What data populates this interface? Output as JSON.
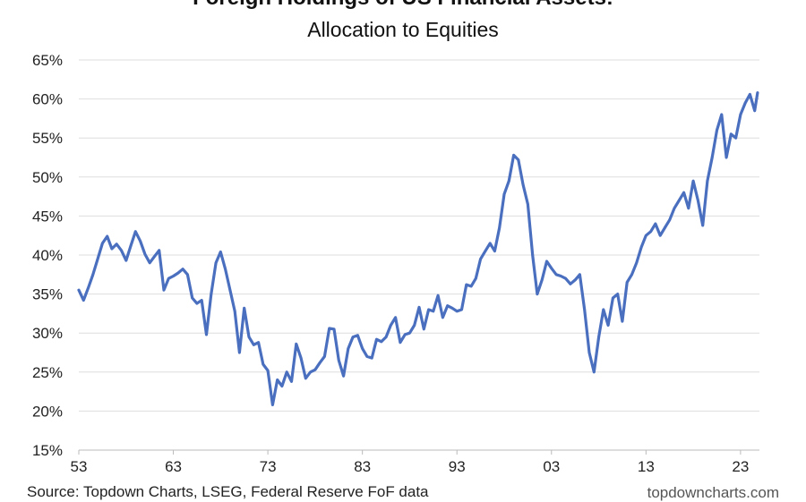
{
  "chart_data": {
    "type": "line",
    "title": "Foreign Holdings of US Financial Assets:",
    "subtitle": "Allocation to Equities",
    "ylim": [
      15,
      65
    ],
    "xlim": [
      1953,
      2025
    ],
    "y_ticks": [
      15,
      20,
      25,
      30,
      35,
      40,
      45,
      50,
      55,
      60,
      65
    ],
    "y_tick_labels": [
      "15%",
      "20%",
      "25%",
      "30%",
      "35%",
      "40%",
      "45%",
      "50%",
      "55%",
      "60%",
      "65%"
    ],
    "x_ticks": [
      1953,
      1963,
      1973,
      1983,
      1993,
      2003,
      2013,
      2023
    ],
    "x_tick_labels": [
      "53",
      "63",
      "73",
      "83",
      "93",
      "03",
      "13",
      "23"
    ],
    "grid": "horizontal",
    "line_color": "#4a6fbf",
    "series": [
      {
        "x": [
          1953,
          1953.5,
          1954,
          1954.5,
          1955,
          1955.5,
          1956,
          1956.5,
          1957,
          1957.5,
          1958,
          1958.5,
          1959,
          1959.5,
          1960,
          1960.5,
          1961,
          1961.5,
          1962,
          1962.5,
          1963,
          1963.5,
          1964,
          1964.5,
          1965,
          1965.5,
          1966,
          1966.5,
          1967,
          1967.5,
          1968,
          1968.5,
          1969,
          1969.5,
          1970,
          1970.5,
          1971,
          1971.5,
          1972,
          1972.5,
          1973,
          1973.5,
          1974,
          1974.5,
          1975,
          1975.5,
          1976,
          1976.5,
          1977,
          1977.5,
          1978,
          1978.5,
          1979,
          1979.5,
          1980,
          1980.5,
          1981,
          1981.5,
          1982,
          1982.5,
          1983,
          1983.5,
          1984,
          1984.5,
          1985,
          1985.5,
          1986,
          1986.5,
          1987,
          1987.5,
          1988,
          1988.5,
          1989,
          1989.5,
          1990,
          1990.5,
          1991,
          1991.5,
          1992,
          1992.5,
          1993,
          1993.5,
          1994,
          1994.5,
          1995,
          1995.5,
          1996,
          1996.5,
          1997,
          1997.5,
          1998,
          1998.5,
          1999,
          1999.5,
          2000,
          2000.5,
          2001,
          2001.5,
          2002,
          2002.5,
          2003,
          2003.5,
          2004,
          2004.5,
          2005,
          2005.5,
          2006,
          2006.5,
          2007,
          2007.5,
          2008,
          2008.5,
          2009,
          2009.5,
          2010,
          2010.5,
          2011,
          2011.5,
          2012,
          2012.5,
          2013,
          2013.5,
          2014,
          2014.5,
          2015,
          2015.5,
          2016,
          2016.5,
          2017,
          2017.5,
          2018,
          2018.5,
          2019,
          2019.5,
          2020,
          2020.5,
          2021,
          2021.5,
          2022,
          2022.5,
          2023,
          2023.5,
          2024,
          2024.5,
          2024.8
        ],
        "values": [
          35.5,
          34.2,
          35.8,
          37.5,
          39.5,
          41.5,
          42.4,
          40.8,
          41.4,
          40.6,
          39.3,
          41.2,
          43.0,
          41.8,
          40.1,
          39.0,
          39.8,
          40.6,
          35.5,
          37.0,
          37.3,
          37.7,
          38.2,
          37.5,
          34.5,
          33.8,
          34.2,
          29.8,
          35.0,
          39.0,
          40.4,
          38.2,
          35.5,
          32.8,
          27.5,
          33.2,
          29.5,
          28.5,
          28.8,
          26.0,
          25.2,
          20.8,
          24.0,
          23.2,
          25.0,
          23.8,
          28.6,
          26.8,
          24.2,
          25.0,
          25.3,
          26.2,
          27.0,
          30.6,
          30.5,
          26.5,
          24.5,
          28.0,
          29.5,
          29.7,
          28.0,
          27.0,
          26.8,
          29.2,
          28.9,
          29.5,
          31.0,
          32.0,
          28.8,
          29.8,
          30.0,
          31.0,
          33.3,
          30.5,
          33.0,
          32.8,
          34.8,
          32.0,
          33.5,
          33.2,
          32.8,
          33.0,
          36.2,
          36.0,
          37.0,
          39.5,
          40.5,
          41.5,
          40.5,
          43.5,
          47.8,
          49.5,
          52.8,
          52.2,
          49.0,
          46.5,
          40.0,
          35.0,
          36.8,
          39.2,
          38.3,
          37.5,
          37.3,
          37.0,
          36.3,
          36.8,
          37.5,
          33.0,
          27.5,
          25.0,
          29.5,
          33.0,
          31.0,
          34.5,
          35.0,
          31.5,
          36.5,
          37.5,
          39.0,
          41.0,
          42.5,
          43.0,
          44.0,
          42.5,
          43.5,
          44.5,
          46.0,
          47.0,
          48.0,
          46.0,
          49.5,
          47.0,
          43.8,
          49.5,
          52.5,
          56.0,
          58.0,
          52.5,
          55.5,
          55.0,
          58.0,
          59.5,
          60.6,
          58.5,
          60.8
        ]
      }
    ]
  },
  "source_text": "Source: Topdown Charts, LSEG, Federal Reserve FoF data",
  "watermark": "topdowncharts.com"
}
